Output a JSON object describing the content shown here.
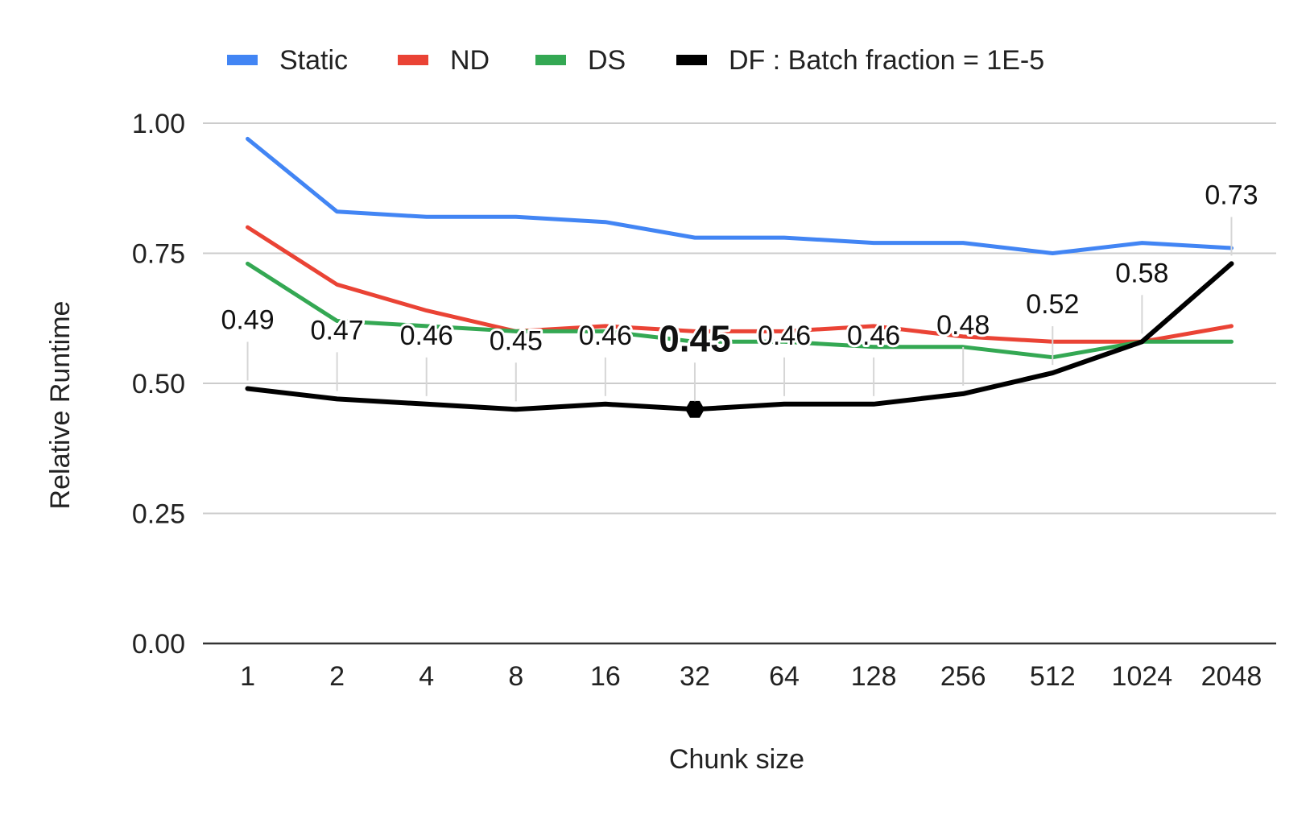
{
  "chart_data": {
    "type": "line",
    "title": "",
    "xlabel": "Chunk size",
    "ylabel": "Relative Runtime",
    "categories": [
      "1",
      "2",
      "4",
      "8",
      "16",
      "32",
      "64",
      "128",
      "256",
      "512",
      "1024",
      "2048"
    ],
    "ylim": [
      0,
      1
    ],
    "yticks": [
      "0.00",
      "0.25",
      "0.50",
      "0.75",
      "1.00"
    ],
    "ytick_values": [
      0,
      0.25,
      0.5,
      0.75,
      1.0
    ],
    "grid": true,
    "legend_position": "top",
    "series": [
      {
        "name": "Static",
        "color": "#4285F4",
        "values": [
          0.97,
          0.83,
          0.82,
          0.82,
          0.81,
          0.78,
          0.78,
          0.77,
          0.77,
          0.75,
          0.77,
          0.76
        ]
      },
      {
        "name": "ND",
        "color": "#EA4335",
        "values": [
          0.8,
          0.69,
          0.64,
          0.6,
          0.61,
          0.6,
          0.6,
          0.61,
          0.59,
          0.58,
          0.58,
          0.61
        ]
      },
      {
        "name": "DS",
        "color": "#34A853",
        "values": [
          0.73,
          0.62,
          0.61,
          0.6,
          0.6,
          0.58,
          0.58,
          0.57,
          0.57,
          0.55,
          0.58,
          0.58
        ]
      },
      {
        "name": "DF : Batch fraction = 1E-5",
        "color": "#000000",
        "values": [
          0.49,
          0.47,
          0.46,
          0.45,
          0.46,
          0.45,
          0.46,
          0.46,
          0.48,
          0.52,
          0.58,
          0.73
        ],
        "data_labels": [
          "0.49",
          "0.47",
          "0.46",
          "0.45",
          "0.46",
          "0.45",
          "0.46",
          "0.46",
          "0.48",
          "0.52",
          "0.58",
          "0.73"
        ],
        "highlight_index": 5
      }
    ]
  }
}
